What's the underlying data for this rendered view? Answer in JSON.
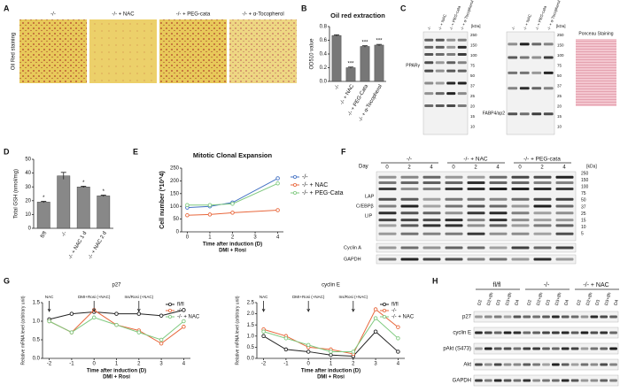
{
  "panel_labels": [
    "A",
    "B",
    "C",
    "D",
    "E",
    "F",
    "G",
    "H"
  ],
  "staining": {
    "label": "Oil Red staining",
    "conditions": [
      "-/-",
      "-/- + NAC",
      "-/- + PEG-cata",
      "-/- + α-Tocopherol"
    ]
  },
  "blot_c": {
    "lanes": [
      "-/-",
      "-/- + NAC",
      "-/- + PEG-cata",
      "-/- + α-Tocopherol"
    ],
    "kda_label": "[kDa]",
    "markers": [
      "250",
      "150",
      "100",
      "75",
      "50",
      "37",
      "25",
      "20",
      "15",
      "10"
    ],
    "protein_left": "PPARγ",
    "protein_right": "FABP4/ap2",
    "ponceau": "Ponceau Staining"
  },
  "blot_f": {
    "day_label": "Day",
    "groups": [
      "-/-",
      "-/- + NAC",
      "-/- + PEG-cata"
    ],
    "days": [
      "0",
      "2",
      "4"
    ],
    "kda_label": "[kDa]",
    "markers": [
      "250",
      "150",
      "100",
      "75",
      "50",
      "37",
      "25",
      "15",
      "10",
      "5"
    ],
    "labels": [
      "LAP",
      "C/EBPβ",
      "LIP",
      "Cyclin A",
      "GAPDH"
    ]
  },
  "blot_h": {
    "groups": [
      "fl/fl",
      "-/-",
      "-/- + NAC"
    ],
    "lanes": [
      "D2",
      "D2+8h",
      "D3",
      "D3+8h",
      "D4"
    ],
    "proteins": [
      "p27",
      "cyclin E",
      "pAkt (S473)",
      "Akt",
      "GAPDH"
    ]
  },
  "chart_data": [
    {
      "type": "bar",
      "title": "Oil red extraction",
      "y_label": "OD510 value",
      "categories": [
        "-/-",
        "-/- + NAC",
        "-/- + PEG-Cata",
        "-/- + α-Tocopherol"
      ],
      "values": [
        0.67,
        0.2,
        0.51,
        0.53
      ],
      "errors": [
        0.01,
        0.01,
        0.01,
        0.01
      ],
      "significance": [
        null,
        "***",
        "***",
        "***"
      ],
      "color": "#777777",
      "ylim": [
        0,
        0.8
      ],
      "yticks": [
        {
          "value": 0,
          "label": "0.0"
        },
        {
          "value": 0.2,
          "label": "0.2"
        },
        {
          "value": 0.4,
          "label": "0.4"
        },
        {
          "value": 0.6,
          "label": "0.6"
        },
        {
          "value": 0.8,
          "label": "0.8"
        }
      ]
    },
    {
      "type": "bar",
      "y_label": "Total GSH (nmol/mg)",
      "categories": [
        "fl/fl",
        "-/-",
        "-/- + NAC 1 d",
        "-/- + NAC 2 d"
      ],
      "values": [
        19,
        38,
        30,
        23.5
      ],
      "errors": [
        0.5,
        2.5,
        0.5,
        0.5
      ],
      "significance": [
        "*",
        null,
        "*",
        "*"
      ],
      "color": "#888888",
      "ylim": [
        0,
        50
      ],
      "yticks": [
        0,
        10,
        20,
        30,
        40,
        50
      ]
    },
    {
      "type": "line",
      "title": "Mitotic Clonal Expansion",
      "y_label": "Cell number (*10^4)",
      "x_label": "Time after induction (D)",
      "x_label2": "DMI + Rosi",
      "x": [
        0,
        1,
        2,
        4
      ],
      "xlim": [
        -0.25,
        4.25
      ],
      "xticks": [
        0,
        1,
        2,
        3,
        4
      ],
      "ylim": [
        0,
        250
      ],
      "yticks": [
        0,
        50,
        100,
        150,
        200,
        250
      ],
      "legend": "right",
      "series": [
        {
          "name": "-/-",
          "color": "#4472c4",
          "values": [
            95,
            100,
            115,
            210
          ]
        },
        {
          "name": "-/- + NAC",
          "color": "#e8673c",
          "values": [
            65,
            68,
            75,
            85
          ]
        },
        {
          "name": "-/- + PEG-Cata",
          "color": "#7fc97f",
          "values": [
            105,
            105,
            110,
            190
          ]
        }
      ]
    },
    {
      "type": "line",
      "title": "p27",
      "y_label": "Relative mRNA level (arbitrary unit)",
      "x_label": "Time after induction (D)",
      "x_label2": "DMI + Rosi",
      "x": [
        -2,
        -1,
        0,
        1,
        2,
        3,
        4
      ],
      "xlim": [
        -2.3,
        4.3
      ],
      "xticks": [
        -2,
        -1,
        0,
        1,
        2,
        3,
        4
      ],
      "ylim": [
        0,
        1.5
      ],
      "yticks": [
        {
          "value": 0,
          "label": "0.0"
        },
        {
          "value": 0.5,
          "label": "0.5"
        },
        {
          "value": 1,
          "label": "1.0"
        },
        {
          "value": 1.5,
          "label": "1.5"
        }
      ],
      "legend": "upper right",
      "annotations": [
        {
          "x": -2,
          "text": "NAC"
        },
        {
          "x": 0,
          "text": "DMI+Rosi (+NAC)"
        },
        {
          "x": 2,
          "text": "Ins/Rosi (+NAC)"
        }
      ],
      "series": [
        {
          "name": "fl/fl",
          "color": "#222222",
          "values": [
            1.05,
            1.2,
            1.25,
            1.2,
            1.2,
            1.15,
            1.3
          ]
        },
        {
          "name": "-/-",
          "color": "#e8673c",
          "values": [
            1.0,
            0.7,
            1.3,
            0.9,
            0.75,
            0.4,
            0.85
          ]
        },
        {
          "name": "-/- + NAC",
          "color": "#7fc97f",
          "values": [
            1.0,
            0.7,
            1.1,
            0.9,
            0.7,
            0.5,
            1.0
          ]
        }
      ]
    },
    {
      "type": "line",
      "title": "cyclin E",
      "y_label": "Relative mRNA level (arbitrary unit)",
      "x_label": "Time after induction (D)",
      "x_label2": "DMI + Rosi",
      "x": [
        -2,
        -1,
        0,
        1,
        2,
        3,
        4
      ],
      "xlim": [
        -2.3,
        4.3
      ],
      "xticks": [
        -2,
        -1,
        0,
        1,
        2,
        3,
        4
      ],
      "ylim": [
        0,
        2.5
      ],
      "yticks": [
        {
          "value": 0,
          "label": "0.0"
        },
        {
          "value": 0.5,
          "label": "0.5"
        },
        {
          "value": 1,
          "label": "1.0"
        },
        {
          "value": 1.5,
          "label": "1.5"
        },
        {
          "value": 2,
          "label": "2.0"
        },
        {
          "value": 2.5,
          "label": "2.5"
        }
      ],
      "legend": "upper right",
      "annotations": [
        {
          "x": -2,
          "text": "NAC"
        },
        {
          "x": 0,
          "text": "DMI+Rosi (+NAC)"
        },
        {
          "x": 2,
          "text": "Ins/Rosi (+NAC)"
        }
      ],
      "series": [
        {
          "name": "fl/fl",
          "color": "#222222",
          "values": [
            1.0,
            0.4,
            0.3,
            0.15,
            0.1,
            1.2,
            0.3
          ]
        },
        {
          "name": "-/-",
          "color": "#e8673c",
          "values": [
            1.3,
            1.0,
            0.5,
            0.4,
            0.2,
            2.2,
            1.4
          ]
        },
        {
          "name": "-/- + NAC",
          "color": "#7fc97f",
          "values": [
            1.2,
            0.9,
            0.6,
            0.3,
            0.3,
            1.8,
            0.9
          ]
        }
      ]
    }
  ]
}
